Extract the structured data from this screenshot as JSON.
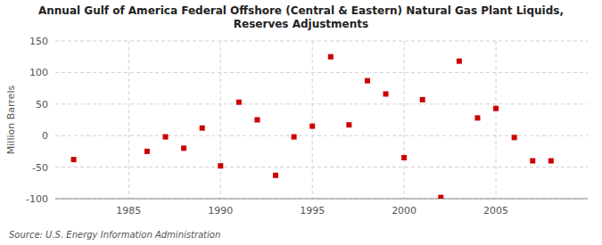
{
  "chart_data": {
    "type": "scatter",
    "title": "Annual Gulf of America Federal Offshore (Central & Eastern) Natural Gas Plant Liquids,\nReserves Adjustments",
    "ylabel": "Million Barrels",
    "source": "Source: U.S. Energy Information Administration",
    "x": [
      1982,
      1986,
      1987,
      1988,
      1989,
      1990,
      1991,
      1992,
      1993,
      1994,
      1995,
      1996,
      1997,
      1998,
      1999,
      2000,
      2001,
      2002,
      2003,
      2004,
      2005,
      2006,
      2007,
      2008
    ],
    "values": [
      -38,
      -25,
      -2,
      -20,
      12,
      -48,
      53,
      25,
      -63,
      -2,
      15,
      125,
      17,
      87,
      66,
      -35,
      57,
      -98,
      118,
      28,
      43,
      -3,
      -40,
      -40
    ],
    "color": "#cc0000",
    "marker": "square",
    "xlim": [
      1981,
      2010
    ],
    "xticks": [
      1985,
      1990,
      1995,
      2000,
      2005
    ],
    "ylim": [
      -100,
      150
    ],
    "yticks": [
      -100,
      -50,
      0,
      50,
      100,
      150
    ],
    "grid": true
  }
}
